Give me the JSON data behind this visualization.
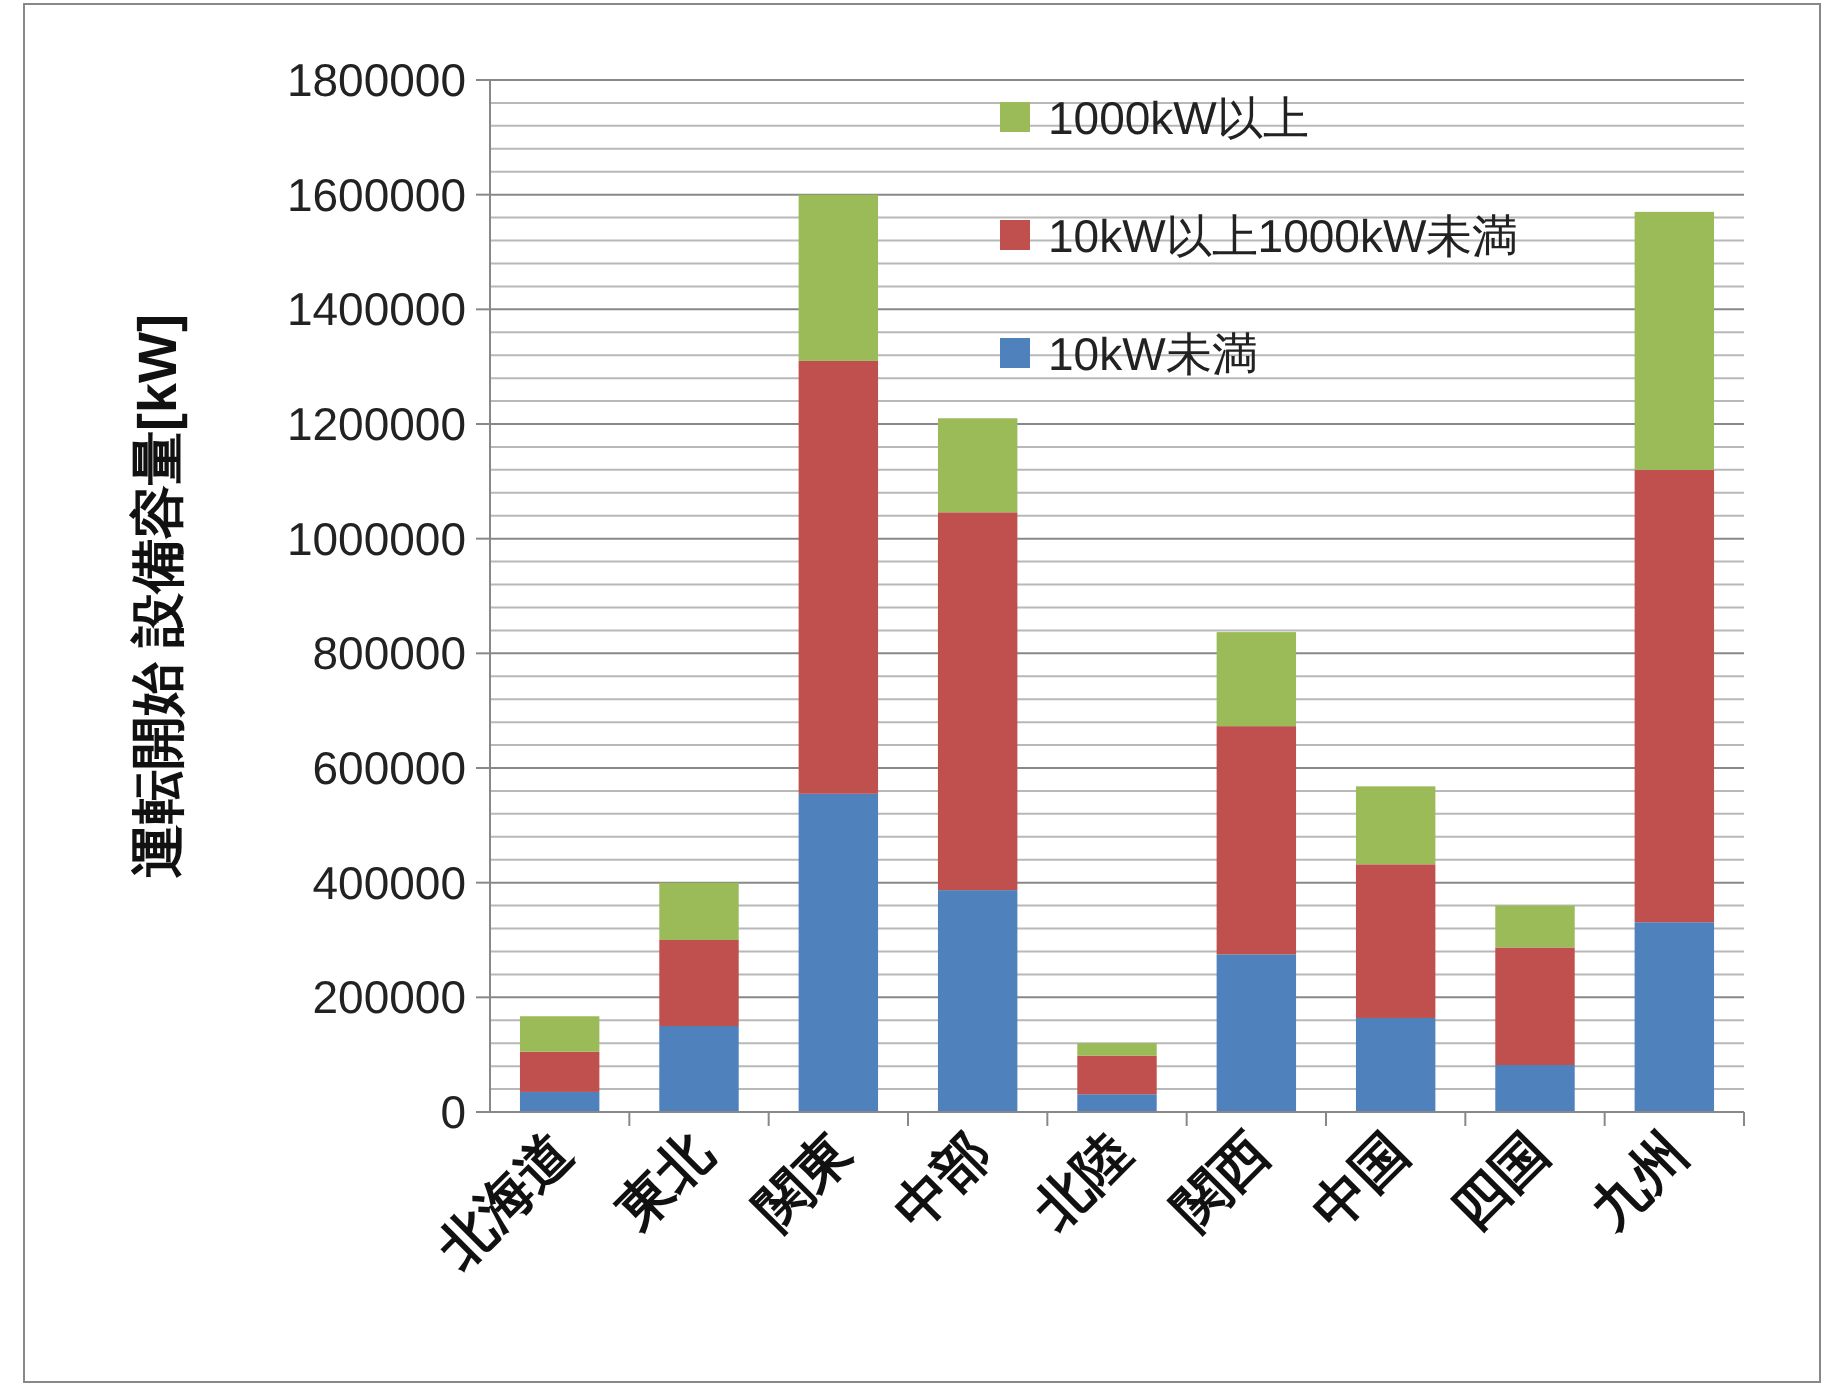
{
  "chart_data": {
    "type": "bar",
    "stacked": true,
    "ylabel": "運転開始 設備容量[kW]",
    "categories": [
      "北海道",
      "東北",
      "関東",
      "中部",
      "北陸",
      "関西",
      "中国",
      "四国",
      "九州"
    ],
    "series": [
      {
        "name": "10kW未満",
        "color": "#4f81bd",
        "values": [
          35000,
          150000,
          555000,
          387000,
          31000,
          275000,
          164000,
          82000,
          331000
        ]
      },
      {
        "name": "10kW以上1000kW未満",
        "color": "#c0504d",
        "values": [
          70000,
          150000,
          755000,
          659000,
          67000,
          398000,
          268000,
          205000,
          789000
        ]
      },
      {
        "name": "1000kW以上",
        "color": "#9bbb59",
        "values": [
          62000,
          100000,
          290000,
          164000,
          22000,
          164000,
          136000,
          73000,
          450000
        ]
      }
    ],
    "ylim": [
      0,
      1800000
    ],
    "yticks": [
      0,
      {
        "value": 40000,
        "label": null
      },
      {
        "value": 80000,
        "label": null
      },
      {
        "value": 120000,
        "label": null
      },
      {
        "value": 160000,
        "label": null
      },
      200000,
      {
        "value": 240000,
        "label": null
      },
      {
        "value": 280000,
        "label": null
      },
      {
        "value": 320000,
        "label": null
      },
      {
        "value": 360000,
        "label": null
      },
      400000,
      {
        "value": 440000,
        "label": null
      },
      {
        "value": 480000,
        "label": null
      },
      {
        "value": 520000,
        "label": null
      },
      {
        "value": 560000,
        "label": null
      },
      600000,
      {
        "value": 640000,
        "label": null
      },
      {
        "value": 680000,
        "label": null
      },
      {
        "value": 720000,
        "label": null
      },
      {
        "value": 760000,
        "label": null
      },
      800000,
      {
        "value": 840000,
        "label": null
      },
      {
        "value": 880000,
        "label": null
      },
      {
        "value": 920000,
        "label": null
      },
      {
        "value": 960000,
        "label": null
      },
      1000000,
      {
        "value": 1040000,
        "label": null
      },
      {
        "value": 1080000,
        "label": null
      },
      {
        "value": 1120000,
        "label": null
      },
      {
        "value": 1160000,
        "label": null
      },
      1200000,
      {
        "value": 1240000,
        "label": null
      },
      {
        "value": 1280000,
        "label": null
      },
      {
        "value": 1320000,
        "label": null
      },
      {
        "value": 1360000,
        "label": null
      },
      1400000,
      {
        "value": 1440000,
        "label": null
      },
      {
        "value": 1480000,
        "label": null
      },
      {
        "value": 1520000,
        "label": null
      },
      {
        "value": 1560000,
        "label": null
      },
      1600000,
      {
        "value": 1640000,
        "label": null
      },
      {
        "value": 1680000,
        "label": null
      },
      {
        "value": 1720000,
        "label": null
      },
      {
        "value": 1760000,
        "label": null
      },
      1800000
    ],
    "grid": "y",
    "legend": "top right"
  }
}
